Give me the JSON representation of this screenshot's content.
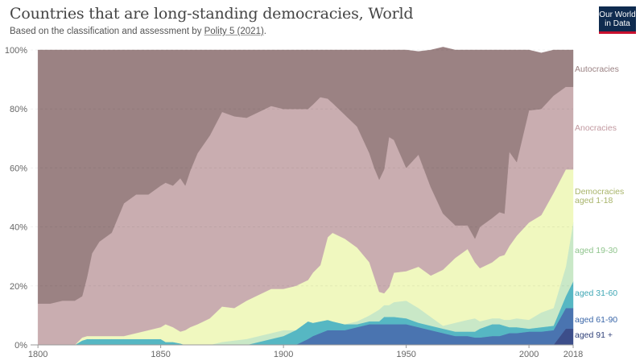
{
  "title": "Countries that are long-standing democracies, World",
  "subtitle_prefix": "Based on the classification and assessment by ",
  "subtitle_source": "Polity 5 (2021)",
  "subtitle_suffix": ".",
  "logo": {
    "line1": "Our World",
    "line2": "in Data"
  },
  "chart_data": {
    "type": "area",
    "stacked": true,
    "normalized_percent": true,
    "x": [
      1800,
      1805,
      1810,
      1815,
      1818,
      1820,
      1822,
      1825,
      1830,
      1835,
      1840,
      1845,
      1850,
      1852,
      1855,
      1858,
      1860,
      1862,
      1865,
      1870,
      1875,
      1880,
      1885,
      1890,
      1895,
      1900,
      1905,
      1910,
      1912,
      1915,
      1918,
      1920,
      1925,
      1930,
      1935,
      1937,
      1939,
      1941,
      1943,
      1945,
      1950,
      1955,
      1960,
      1965,
      1970,
      1975,
      1978,
      1980,
      1985,
      1988,
      1990,
      1992,
      1995,
      2000,
      2005,
      2010,
      2015,
      2018
    ],
    "series": [
      {
        "name": "aged 91 +",
        "color": "#3c4e8a",
        "values": [
          0,
          0,
          0,
          0,
          0,
          0,
          0,
          0,
          0,
          0,
          0,
          0,
          0,
          0,
          0,
          0,
          0,
          0,
          0,
          0,
          0,
          0,
          0,
          0,
          0,
          0,
          0,
          0,
          0,
          0,
          0,
          0,
          0,
          0,
          0,
          0,
          0,
          0,
          0,
          0,
          0,
          0,
          0,
          0,
          0,
          0,
          0,
          0,
          0,
          0,
          0,
          0,
          0,
          0,
          0,
          0,
          5.5,
          5.5
        ]
      },
      {
        "name": "aged 61-90",
        "color": "#4a74b0",
        "values": [
          0,
          0,
          0,
          0,
          0,
          0,
          0,
          0,
          0,
          0,
          0,
          0,
          0,
          0,
          0,
          0,
          0,
          0,
          0,
          0,
          0,
          0,
          0,
          0,
          0,
          0,
          0,
          2,
          3,
          4,
          5,
          5,
          5,
          6,
          7,
          7,
          7,
          7,
          7,
          7,
          7,
          6,
          5,
          4,
          3,
          3,
          2.5,
          2.5,
          3,
          3,
          3.5,
          4,
          4,
          4.5,
          4.5,
          5,
          7,
          7
        ]
      },
      {
        "name": "aged 31-60",
        "color": "#56b7c3",
        "values": [
          0,
          0,
          0,
          0,
          1.5,
          2,
          2,
          2,
          2,
          2,
          2,
          2,
          2,
          1,
          1,
          0.5,
          0,
          0,
          0,
          0,
          0,
          0,
          0,
          1,
          2,
          3,
          5,
          6,
          4.5,
          4,
          3.5,
          3,
          2,
          1,
          1,
          1,
          1,
          2.5,
          2.5,
          2.5,
          2,
          1.5,
          1.5,
          1.5,
          1.5,
          1.5,
          2,
          3,
          4,
          4,
          3,
          2,
          2,
          1,
          1.5,
          1.5,
          4,
          9
        ]
      },
      {
        "name": "aged 19-30",
        "color": "#c9e8c7",
        "values": [
          0,
          0,
          0,
          0,
          0,
          0,
          0,
          0,
          0,
          0,
          0,
          0,
          0,
          0,
          0,
          0,
          0,
          0,
          0,
          0,
          1,
          1.5,
          2,
          2,
          2,
          2,
          0,
          0,
          0,
          0,
          0,
          0,
          0,
          1,
          2,
          3,
          4,
          4,
          4,
          5,
          6,
          5,
          3,
          1,
          3,
          4,
          4.5,
          2.5,
          2,
          2,
          2,
          2.5,
          3,
          3,
          5,
          6,
          10,
          20
        ]
      },
      {
        "name": "aged 1-18",
        "color": "#f0f8bf",
        "values": [
          0,
          0,
          0,
          0,
          1,
          1,
          1,
          1,
          1,
          1,
          2,
          3,
          4,
          6,
          5,
          4,
          5,
          6,
          7,
          9,
          12,
          11,
          13,
          14,
          15,
          14,
          15,
          14,
          17,
          19,
          28,
          30,
          29,
          25,
          18,
          12,
          6,
          4,
          6,
          10,
          10,
          14,
          14,
          19,
          22,
          24,
          19,
          18,
          19,
          21,
          22,
          25,
          28,
          33,
          33,
          39,
          33,
          18
        ]
      },
      {
        "name": "Anocracies",
        "color": "#c9adb0",
        "values": [
          14,
          14,
          15,
          15,
          14,
          20,
          28,
          32,
          35,
          45,
          47,
          46,
          48,
          48,
          48,
          52,
          49,
          53,
          58,
          62,
          66,
          65,
          62,
          62,
          62,
          61,
          60,
          58,
          57,
          57,
          47,
          44,
          42,
          41,
          37,
          37,
          38,
          42,
          51,
          45,
          35,
          38,
          30,
          19,
          11,
          8,
          8,
          14,
          15,
          15,
          14,
          32,
          25,
          38,
          36,
          33,
          28,
          28
        ]
      },
      {
        "name": "Autocracies",
        "color": "#9b8283",
        "values": [
          86,
          86,
          85,
          85,
          83.5,
          77,
          69,
          65,
          62,
          52,
          49,
          49,
          46,
          45,
          46,
          43.5,
          46,
          41,
          35,
          29,
          21,
          22.5,
          23,
          21,
          19,
          20,
          20,
          20,
          18.5,
          16,
          16.5,
          18,
          22,
          26,
          35,
          40,
          44,
          40.5,
          29.5,
          30.5,
          40,
          35,
          46.5,
          56.5,
          59.5,
          59.5,
          64,
          60,
          57,
          55,
          55.5,
          34.5,
          38,
          20.5,
          19,
          15.5,
          12.5,
          12.5
        ]
      }
    ],
    "xlim": [
      1797,
      2018
    ],
    "ylim": [
      0,
      100
    ],
    "x_ticks": [
      "1800",
      "1850",
      "1900",
      "1950",
      "2000",
      "2018"
    ],
    "y_ticks": [
      "0%",
      "20%",
      "40%",
      "60%",
      "80%",
      "100%"
    ],
    "labels": [
      "Autocracies",
      "Anocracies",
      "Democracies",
      "aged 1-18",
      "aged 19-30",
      "aged 31-60",
      "aged 61-90",
      "aged 91 +"
    ],
    "grid": true,
    "legend_position": "right"
  }
}
